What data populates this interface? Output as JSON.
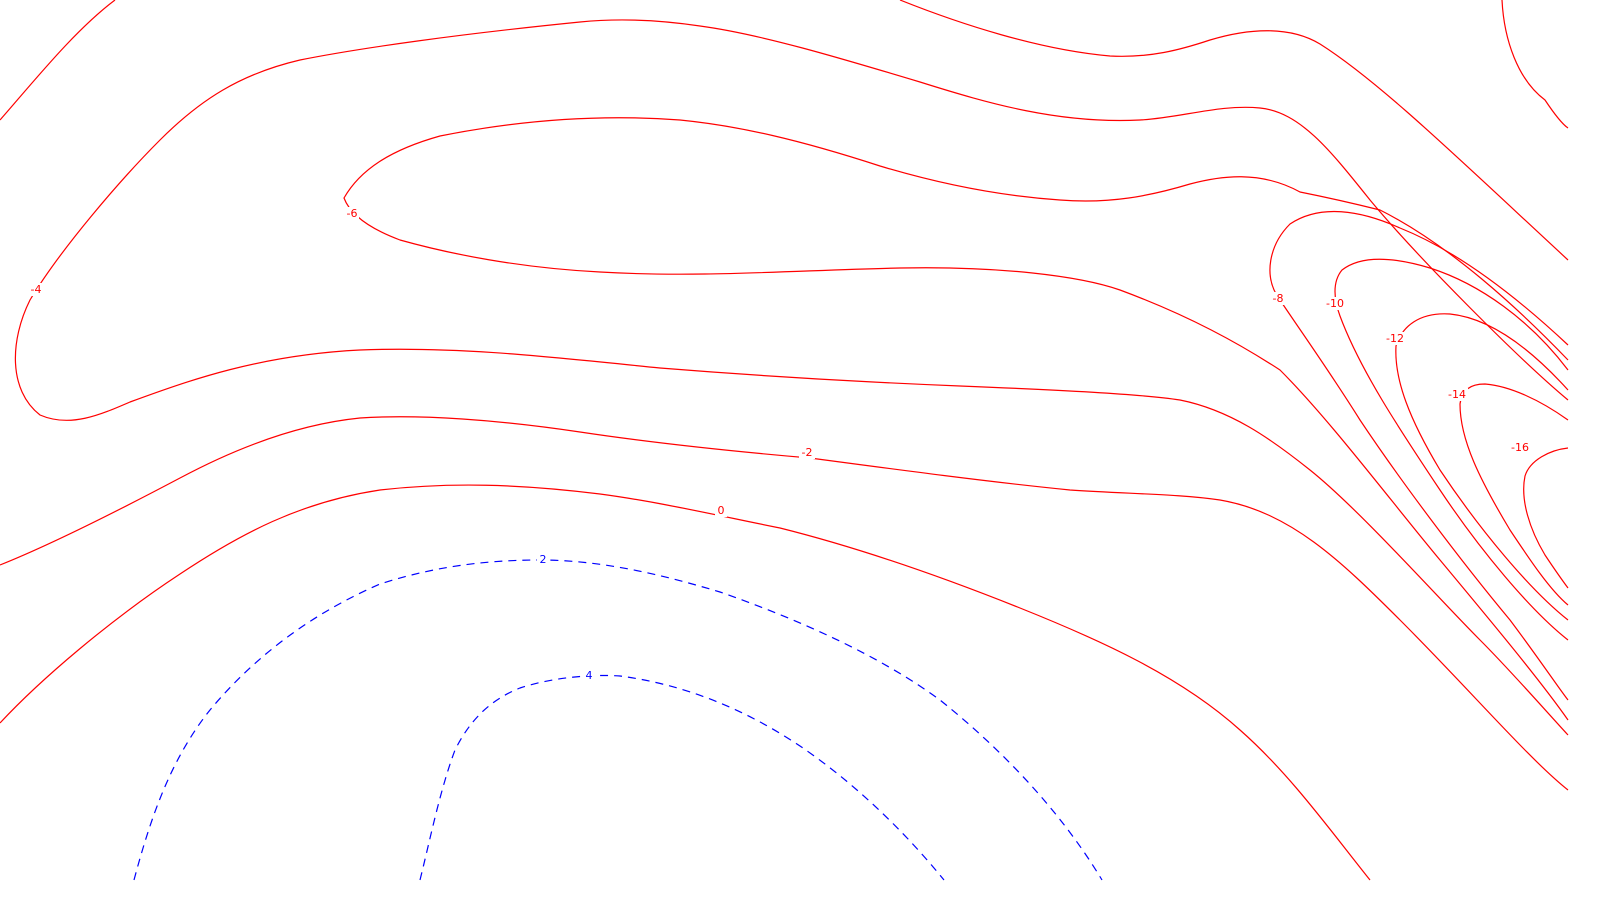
{
  "map": {
    "colors": {
      "negative_contour": "#ff0000",
      "positive_contour": "#0000ff",
      "background": "#ffffff"
    },
    "contour_labels": {
      "m16": "-16",
      "m14": "-14",
      "m12": "-12",
      "m10": "-10",
      "m8": "-8",
      "m6": "-6",
      "m4": "-4",
      "m2": "-2",
      "z0": "0",
      "p2": "2",
      "p4": "4"
    },
    "line_styles": {
      "negative": "solid",
      "positive": "dashed"
    }
  }
}
